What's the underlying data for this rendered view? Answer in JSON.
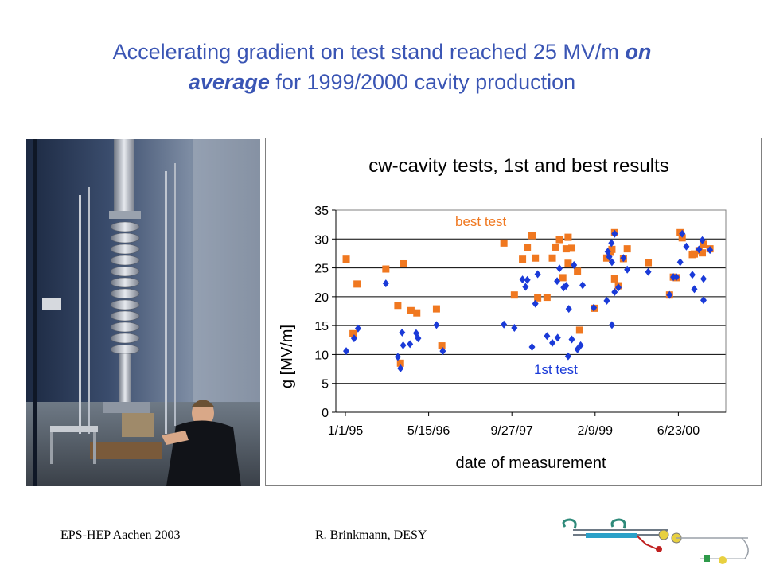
{
  "slide": {
    "title_part1": "Accelerating gradient on test stand reached 25 MV/m ",
    "title_emph1": "on",
    "title_emph2": "average",
    "title_part2": " for 1999/2000 cavity production"
  },
  "footer": {
    "left": "EPS-HEP Aachen 2003",
    "center": "R. Brinkmann, DESY"
  },
  "colors": {
    "title": "#3a55b4",
    "best_series": "#f07820",
    "first_series": "#1a3ad8"
  },
  "chart_data": {
    "type": "scatter",
    "title": "cw-cavity tests, 1st and best results",
    "xlabel": "date of measurement",
    "ylabel": "g [MV/m]",
    "x_ticks": [
      "1/1/95",
      "5/15/96",
      "9/27/97",
      "2/9/99",
      "6/23/00"
    ],
    "ylim": [
      0,
      35
    ],
    "y_ticks": [
      0,
      5,
      10,
      15,
      20,
      25,
      30,
      35
    ],
    "grid": "horizontal",
    "annotations": [
      "best test",
      "1st test"
    ],
    "series": [
      {
        "name": "best test",
        "marker": "square",
        "points": [
          {
            "x": "1995-01-06",
            "y": 26.5
          },
          {
            "x": "1995-02-16",
            "y": 13.6
          },
          {
            "x": "1995-03-12",
            "y": 22.2
          },
          {
            "x": "1995-09-01",
            "y": 24.8
          },
          {
            "x": "1995-11-12",
            "y": 18.5
          },
          {
            "x": "1995-11-28",
            "y": 8.5
          },
          {
            "x": "1995-12-14",
            "y": 25.7
          },
          {
            "x": "1996-01-30",
            "y": 17.6
          },
          {
            "x": "1996-03-05",
            "y": 17.2
          },
          {
            "x": "1996-07-01",
            "y": 17.9
          },
          {
            "x": "1996-08-02",
            "y": 11.5
          },
          {
            "x": "1997-08-10",
            "y": 29.3
          },
          {
            "x": "1997-10-12",
            "y": 20.3
          },
          {
            "x": "1997-11-30",
            "y": 26.5
          },
          {
            "x": "1997-12-29",
            "y": 28.5
          },
          {
            "x": "1998-01-26",
            "y": 30.6
          },
          {
            "x": "1998-02-15",
            "y": 26.7
          },
          {
            "x": "1998-03-01",
            "y": 19.8
          },
          {
            "x": "1998-04-26",
            "y": 19.9
          },
          {
            "x": "1998-05-28",
            "y": 26.7
          },
          {
            "x": "1998-07-10",
            "y": 29.9
          },
          {
            "x": "1998-06-16",
            "y": 28.6
          },
          {
            "x": "1998-07-30",
            "y": 23.3
          },
          {
            "x": "1998-08-19",
            "y": 28.3
          },
          {
            "x": "1998-08-31",
            "y": 30.3
          },
          {
            "x": "1998-08-31",
            "y": 25.8
          },
          {
            "x": "1998-09-22",
            "y": 28.4
          },
          {
            "x": "1998-10-26",
            "y": 24.4
          },
          {
            "x": "1998-11-08",
            "y": 14.2
          },
          {
            "x": "1999-02-05",
            "y": 18.0
          },
          {
            "x": "1999-04-20",
            "y": 26.7
          },
          {
            "x": "1999-05-12",
            "y": 27.7
          },
          {
            "x": "1999-05-21",
            "y": 28.2
          },
          {
            "x": "1999-06-06",
            "y": 23.1
          },
          {
            "x": "1999-06-06",
            "y": 31.1
          },
          {
            "x": "1999-06-29",
            "y": 21.9
          },
          {
            "x": "1999-07-29",
            "y": 26.6
          },
          {
            "x": "1999-08-21",
            "y": 28.3
          },
          {
            "x": "1999-12-25",
            "y": 25.9
          },
          {
            "x": "2000-05-01",
            "y": 20.3
          },
          {
            "x": "2000-05-24",
            "y": 23.4
          },
          {
            "x": "2000-06-11",
            "y": 23.3
          },
          {
            "x": "2000-07-04",
            "y": 31.1
          },
          {
            "x": "2000-07-16",
            "y": 30.2
          },
          {
            "x": "2000-09-15",
            "y": 27.3
          },
          {
            "x": "2000-09-27",
            "y": 27.4
          },
          {
            "x": "2000-10-25",
            "y": 28.0
          },
          {
            "x": "2000-11-14",
            "y": 27.6
          },
          {
            "x": "2000-11-21",
            "y": 29.1
          },
          {
            "x": "2000-12-30",
            "y": 28.3
          }
        ]
      },
      {
        "name": "1st test",
        "marker": "diamond",
        "points": [
          {
            "x": "1995-01-06",
            "y": 10.6
          },
          {
            "x": "1995-02-22",
            "y": 12.8
          },
          {
            "x": "1995-03-18",
            "y": 14.5
          },
          {
            "x": "1995-09-01",
            "y": 22.3
          },
          {
            "x": "1995-11-12",
            "y": 9.6
          },
          {
            "x": "1995-11-28",
            "y": 7.6
          },
          {
            "x": "1995-12-08",
            "y": 13.8
          },
          {
            "x": "1995-12-14",
            "y": 11.6
          },
          {
            "x": "1996-01-24",
            "y": 11.8
          },
          {
            "x": "1996-03-01",
            "y": 13.7
          },
          {
            "x": "1996-03-13",
            "y": 12.8
          },
          {
            "x": "1996-07-01",
            "y": 15.1
          },
          {
            "x": "1996-08-08",
            "y": 10.6
          },
          {
            "x": "1997-08-10",
            "y": 15.2
          },
          {
            "x": "1997-10-12",
            "y": 14.6
          },
          {
            "x": "1997-11-30",
            "y": 23.0
          },
          {
            "x": "1997-12-18",
            "y": 21.7
          },
          {
            "x": "1997-12-29",
            "y": 22.9
          },
          {
            "x": "1998-01-26",
            "y": 11.3
          },
          {
            "x": "1998-02-15",
            "y": 18.8
          },
          {
            "x": "1998-03-01",
            "y": 23.9
          },
          {
            "x": "1998-04-26",
            "y": 13.2
          },
          {
            "x": "1998-05-28",
            "y": 12.0
          },
          {
            "x": "1998-06-26",
            "y": 22.7
          },
          {
            "x": "1998-07-10",
            "y": 24.9
          },
          {
            "x": "1998-06-29",
            "y": 12.9
          },
          {
            "x": "1998-08-04",
            "y": 21.6
          },
          {
            "x": "1998-08-19",
            "y": 21.9
          },
          {
            "x": "1998-08-31",
            "y": 9.7
          },
          {
            "x": "1998-09-04",
            "y": 17.9
          },
          {
            "x": "1998-09-22",
            "y": 12.6
          },
          {
            "x": "1998-10-05",
            "y": 25.5
          },
          {
            "x": "1998-10-26",
            "y": 10.9
          },
          {
            "x": "1998-11-14",
            "y": 11.6
          },
          {
            "x": "1998-11-26",
            "y": 22.0
          },
          {
            "x": "1999-02-01",
            "y": 18.1
          },
          {
            "x": "1999-04-20",
            "y": 19.3
          },
          {
            "x": "1999-04-26",
            "y": 27.8
          },
          {
            "x": "1999-05-05",
            "y": 26.9
          },
          {
            "x": "1999-05-18",
            "y": 29.3
          },
          {
            "x": "1999-05-21",
            "y": 26.0
          },
          {
            "x": "1999-05-21",
            "y": 15.1
          },
          {
            "x": "1999-06-06",
            "y": 20.8
          },
          {
            "x": "1999-06-06",
            "y": 30.9
          },
          {
            "x": "1999-06-29",
            "y": 21.6
          },
          {
            "x": "1999-07-29",
            "y": 26.7
          },
          {
            "x": "1999-08-21",
            "y": 24.7
          },
          {
            "x": "1999-12-25",
            "y": 24.3
          },
          {
            "x": "2000-05-01",
            "y": 20.3
          },
          {
            "x": "2000-05-24",
            "y": 23.4
          },
          {
            "x": "2000-06-11",
            "y": 23.4
          },
          {
            "x": "2000-07-04",
            "y": 26.0
          },
          {
            "x": "2000-07-16",
            "y": 30.9
          },
          {
            "x": "2000-08-10",
            "y": 28.7
          },
          {
            "x": "2000-09-15",
            "y": 23.8
          },
          {
            "x": "2000-09-27",
            "y": 21.3
          },
          {
            "x": "2000-10-25",
            "y": 28.2
          },
          {
            "x": "2000-11-14",
            "y": 29.8
          },
          {
            "x": "2000-11-21",
            "y": 19.4
          },
          {
            "x": "2000-11-21",
            "y": 23.1
          },
          {
            "x": "2000-12-30",
            "y": 28.1
          }
        ]
      }
    ]
  }
}
